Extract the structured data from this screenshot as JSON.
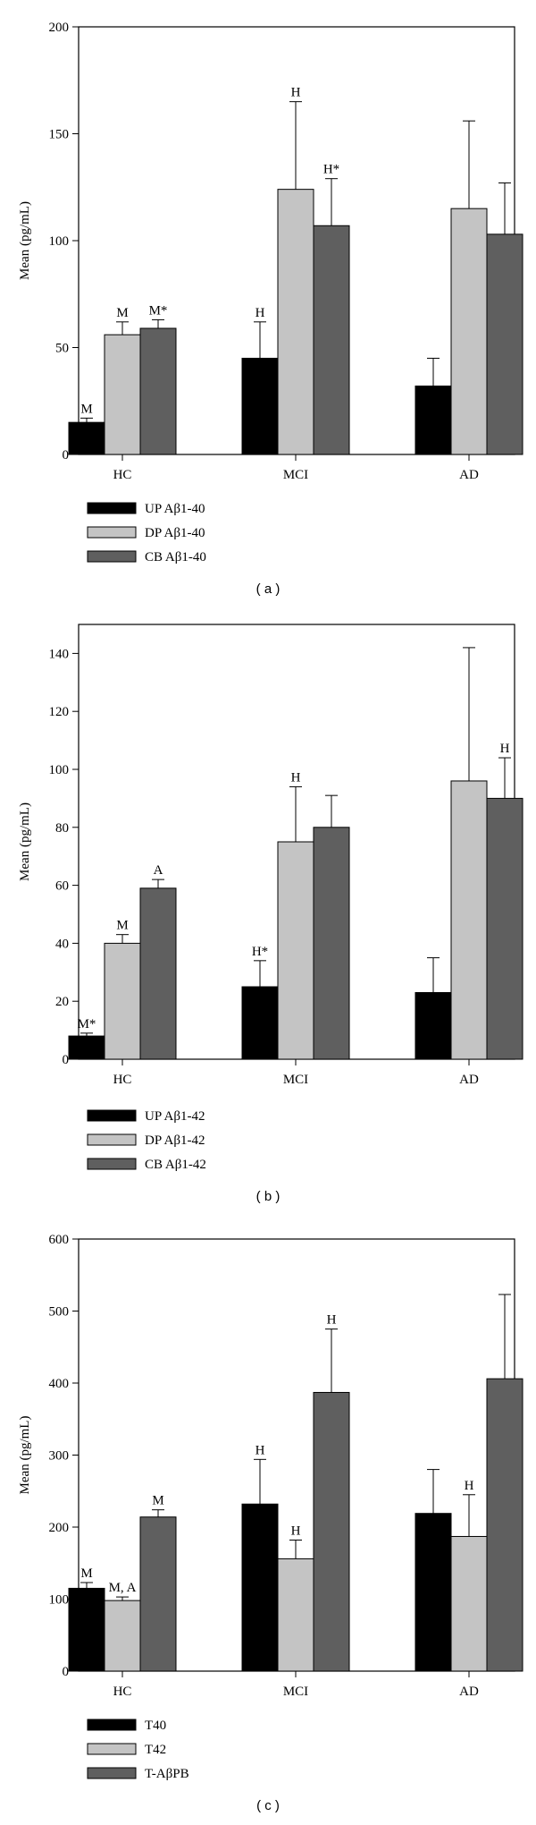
{
  "colors": {
    "black_bar": "#000000",
    "light_bar": "#c4c4c4",
    "dark_bar": "#5f5f5f"
  },
  "chart_data": [
    {
      "type": "bar",
      "caption": "( a )",
      "ylabel": "Mean (pg/mL)",
      "ylim": [
        0,
        200
      ],
      "yticks": [
        0,
        50,
        100,
        150,
        200
      ],
      "categories": [
        "HC",
        "MCI",
        "AD"
      ],
      "grid": false,
      "legend_position": "below",
      "series": [
        {
          "name": "UP Aβ1-40",
          "color": "#000000",
          "values": [
            15,
            45,
            32
          ],
          "errors": [
            2,
            17,
            13
          ],
          "annotations": [
            "M",
            "H",
            ""
          ]
        },
        {
          "name": "DP Aβ1-40",
          "color": "#c4c4c4",
          "values": [
            56,
            124,
            115
          ],
          "errors": [
            6,
            41,
            41
          ],
          "annotations": [
            "M",
            "H",
            ""
          ]
        },
        {
          "name": "CB Aβ1-40",
          "color": "#5f5f5f",
          "values": [
            59,
            107,
            103
          ],
          "errors": [
            4,
            22,
            24
          ],
          "annotations": [
            "M*",
            "H*",
            ""
          ]
        }
      ]
    },
    {
      "type": "bar",
      "caption": "( b )",
      "ylabel": "Mean (pg/mL)",
      "ylim": [
        0,
        150
      ],
      "yticks": [
        0,
        20,
        40,
        60,
        80,
        100,
        120,
        140
      ],
      "categories": [
        "HC",
        "MCI",
        "AD"
      ],
      "grid": false,
      "legend_position": "below",
      "series": [
        {
          "name": "UP Aβ1-42",
          "color": "#000000",
          "values": [
            8,
            25,
            23
          ],
          "errors": [
            1,
            9,
            12
          ],
          "annotations": [
            "M*",
            "H*",
            ""
          ]
        },
        {
          "name": "DP Aβ1-42",
          "color": "#c4c4c4",
          "values": [
            40,
            75,
            96
          ],
          "errors": [
            3,
            19,
            46
          ],
          "annotations": [
            "M",
            "H",
            ""
          ]
        },
        {
          "name": "CB Aβ1-42",
          "color": "#5f5f5f",
          "values": [
            59,
            80,
            90
          ],
          "errors": [
            3,
            11,
            14
          ],
          "annotations": [
            "A",
            "",
            "H"
          ]
        }
      ]
    },
    {
      "type": "bar",
      "caption": "( c )",
      "ylabel": "Mean (pg/mL)",
      "ylim": [
        0,
        600
      ],
      "yticks": [
        0,
        100,
        200,
        300,
        400,
        500,
        600
      ],
      "categories": [
        "HC",
        "MCI",
        "AD"
      ],
      "grid": false,
      "legend_position": "below",
      "series": [
        {
          "name": "T40",
          "color": "#000000",
          "values": [
            115,
            232,
            219
          ],
          "errors": [
            8,
            62,
            61
          ],
          "annotations": [
            "M",
            "H",
            ""
          ]
        },
        {
          "name": "T42",
          "color": "#c4c4c4",
          "values": [
            98,
            156,
            187
          ],
          "errors": [
            5,
            26,
            58
          ],
          "annotations": [
            "M, A",
            "H",
            "H"
          ]
        },
        {
          "name": "T-AβPB",
          "color": "#5f5f5f",
          "values": [
            214,
            387,
            406
          ],
          "errors": [
            10,
            88,
            117
          ],
          "annotations": [
            "M",
            "H",
            ""
          ]
        }
      ]
    }
  ]
}
